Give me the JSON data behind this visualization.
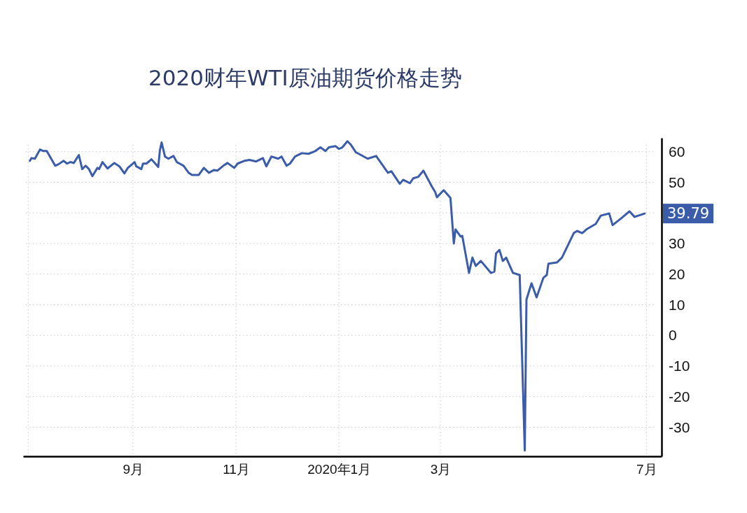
{
  "chart_data": {
    "type": "line",
    "title": "2020财年WTI原油期货价格走势",
    "x": [
      "2019-07-02",
      "2019-07-03",
      "2019-07-05",
      "2019-07-08",
      "2019-07-10",
      "2019-07-12",
      "2019-07-17",
      "2019-07-19",
      "2019-07-22",
      "2019-07-24",
      "2019-07-26",
      "2019-07-28",
      "2019-07-31",
      "2019-08-02",
      "2019-08-04",
      "2019-08-06",
      "2019-08-08",
      "2019-08-11",
      "2019-08-12",
      "2019-08-14",
      "2019-08-17",
      "2019-08-21",
      "2019-08-24",
      "2019-08-27",
      "2019-08-29",
      "2019-09-02",
      "2019-09-03",
      "2019-09-06",
      "2019-09-07",
      "2019-09-09",
      "2019-09-12",
      "2019-09-16",
      "2019-09-17",
      "2019-09-18",
      "2019-09-20",
      "2019-09-22",
      "2019-09-25",
      "2019-09-27",
      "2019-10-01",
      "2019-10-04",
      "2019-10-06",
      "2019-10-10",
      "2019-10-13",
      "2019-10-16",
      "2019-10-19",
      "2019-10-21",
      "2019-10-25",
      "2019-10-27",
      "2019-10-31",
      "2019-11-02",
      "2019-11-06",
      "2019-11-09",
      "2019-11-13",
      "2019-11-17",
      "2019-11-19",
      "2019-11-22",
      "2019-11-26",
      "2019-11-28",
      "2019-12-01",
      "2019-12-03",
      "2019-12-06",
      "2019-12-10",
      "2019-12-14",
      "2019-12-18",
      "2019-12-21",
      "2019-12-24",
      "2019-12-26",
      "2019-12-30",
      "2020-01-01",
      "2020-01-03",
      "2020-01-06",
      "2020-01-08",
      "2020-01-11",
      "2020-01-18",
      "2020-01-23",
      "2020-01-30",
      "2020-02-01",
      "2020-02-06",
      "2020-02-08",
      "2020-02-12",
      "2020-02-14",
      "2020-02-17",
      "2020-02-20",
      "2020-02-25",
      "2020-02-27",
      "2020-02-28",
      "2020-03-03",
      "2020-03-07",
      "2020-03-09",
      "2020-03-10",
      "2020-03-13",
      "2020-03-14",
      "2020-03-18",
      "2020-03-20",
      "2020-03-22",
      "2020-03-25",
      "2020-03-31",
      "2020-04-02",
      "2020-04-03",
      "2020-04-05",
      "2020-04-07",
      "2020-04-09",
      "2020-04-13",
      "2020-04-17",
      "2020-04-20",
      "2020-04-21",
      "2020-04-24",
      "2020-04-27",
      "2020-05-01",
      "2020-05-03",
      "2020-05-04",
      "2020-05-09",
      "2020-05-12",
      "2020-05-19",
      "2020-05-21",
      "2020-05-24",
      "2020-05-27",
      "2020-06-01",
      "2020-06-04",
      "2020-06-09",
      "2020-06-11",
      "2020-06-16",
      "2020-06-21",
      "2020-06-24",
      "2020-06-30"
    ],
    "series": [
      {
        "color": "#3b5ca8",
        "values": [
          57.0,
          57.9,
          57.7,
          60.7,
          60.2,
          60.2,
          55.4,
          55.9,
          57.0,
          56.1,
          56.6,
          56.3,
          58.9,
          54.3,
          55.4,
          54.3,
          52.0,
          54.7,
          54.3,
          56.6,
          54.5,
          56.3,
          55.2,
          52.9,
          54.7,
          56.6,
          55.2,
          54.3,
          56.1,
          56.1,
          57.5,
          55.0,
          60.5,
          63.0,
          58.4,
          57.7,
          58.6,
          56.6,
          55.4,
          53.1,
          52.4,
          52.4,
          54.7,
          53.1,
          54.0,
          53.8,
          55.6,
          56.3,
          54.7,
          56.1,
          57.0,
          57.3,
          56.8,
          57.9,
          55.2,
          58.4,
          57.7,
          58.4,
          55.4,
          56.1,
          58.4,
          59.5,
          59.3,
          60.2,
          61.4,
          60.2,
          61.4,
          61.8,
          60.9,
          61.4,
          63.4,
          62.3,
          59.8,
          57.7,
          58.6,
          53.1,
          53.6,
          49.5,
          50.8,
          49.7,
          51.3,
          51.8,
          53.8,
          48.6,
          46.8,
          45.1,
          47.4,
          44.9,
          30.0,
          34.6,
          32.3,
          32.5,
          20.4,
          25.4,
          22.7,
          24.3,
          20.4,
          20.8,
          26.8,
          27.9,
          24.3,
          25.4,
          20.4,
          19.7,
          -37.6,
          11.7,
          17.0,
          12.4,
          18.8,
          19.7,
          23.4,
          23.8,
          25.4,
          33.4,
          34.1,
          33.4,
          34.8,
          36.4,
          39.1,
          39.8,
          36.0,
          38.2,
          40.5,
          38.7,
          39.79
        ],
        "value_labels": [
          null,
          null,
          null,
          null,
          null,
          null,
          null,
          null,
          null,
          null,
          null,
          null,
          null,
          null,
          null,
          null,
          null,
          null,
          null,
          null,
          null,
          null,
          null,
          null,
          null,
          null,
          null,
          null,
          null,
          null,
          null,
          null,
          null,
          null,
          null,
          null,
          null,
          null,
          null,
          null,
          null,
          null,
          null,
          null,
          null,
          null,
          null,
          null,
          null,
          null,
          null,
          null,
          null,
          null,
          null,
          null,
          null,
          null,
          null,
          null,
          null,
          null,
          null,
          null,
          null,
          null,
          null,
          null,
          null,
          null,
          null,
          null,
          null,
          null,
          null,
          null,
          null,
          null,
          null,
          null,
          null,
          null,
          null,
          null,
          null,
          null,
          null,
          null,
          null,
          null,
          null,
          null,
          null,
          null,
          null,
          null,
          null,
          null,
          null,
          null,
          null,
          null,
          null,
          null,
          null,
          null,
          null,
          null,
          null,
          null,
          null,
          null,
          null,
          null,
          null,
          null,
          null,
          null,
          null,
          null,
          null,
          null,
          null,
          null,
          "39.79"
        ]
      }
    ],
    "xlim": [
      "2019-06-28",
      "2020-07-10"
    ],
    "xticks": [
      {
        "value": "2019-07-01",
        "label": null
      },
      {
        "value": "2019-09-01",
        "label": "9月"
      },
      {
        "value": "2019-11-01",
        "label": "11月"
      },
      {
        "value": "2020-01-01",
        "label": "2020年1月"
      },
      {
        "value": "2020-03-01",
        "label": "3月"
      },
      {
        "value": "2020-07-01",
        "label": "7月"
      }
    ],
    "ylim": [
      -39.5,
      64.5
    ],
    "yticks": [
      -30,
      -20,
      -10,
      0,
      10,
      20,
      30,
      {
        "value": 40,
        "label": null
      },
      50,
      60
    ],
    "grid": true
  }
}
